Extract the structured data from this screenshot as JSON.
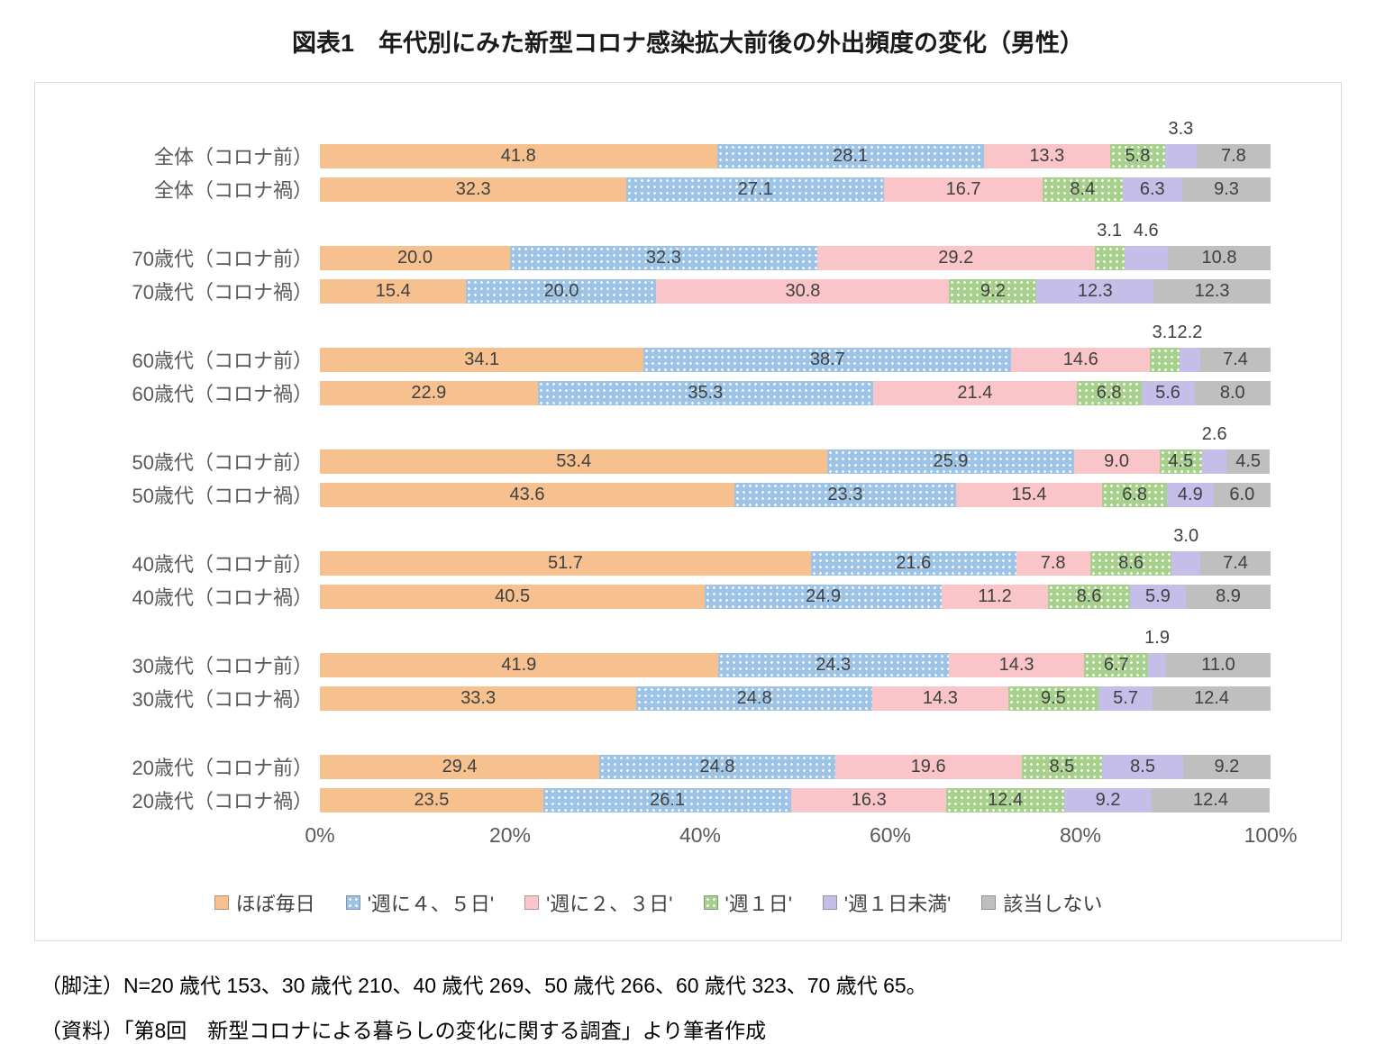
{
  "title": "図表1　年代別にみた新型コロナ感染拡大前後の外出頻度の変化（男性）",
  "chart_data": {
    "type": "bar",
    "subtype": "horizontal-stacked",
    "xlim": [
      0,
      100
    ],
    "x_ticks": [
      "0%",
      "20%",
      "40%",
      "60%",
      "80%",
      "100%"
    ],
    "legend_position": "bottom",
    "series_names": [
      "ほぼ毎日",
      "'週に４、５日'",
      "'週に２、３日'",
      "'週１日'",
      "'週１日未満'",
      "該当しない"
    ],
    "colors": [
      "#F6C18F",
      "#9DC3E6",
      "#F9C5C9",
      "#A8D08D",
      "#C5BEE9",
      "#BFBFBF"
    ],
    "dot_pattern_series": [
      1,
      3
    ],
    "groups": [
      {
        "rows": [
          {
            "label": "全体（コロナ前）",
            "values": [
              41.8,
              28.1,
              13.3,
              5.8,
              3.3,
              7.8
            ],
            "above_label_indices": [
              4
            ]
          },
          {
            "label": "全体（コロナ禍）",
            "values": [
              32.3,
              27.1,
              16.7,
              8.4,
              6.3,
              9.3
            ],
            "above_label_indices": []
          }
        ]
      },
      {
        "rows": [
          {
            "label": "70歳代（コロナ前）",
            "values": [
              20.0,
              32.3,
              29.2,
              3.1,
              4.6,
              10.8
            ],
            "above_label_indices": [
              3,
              4
            ]
          },
          {
            "label": "70歳代（コロナ禍）",
            "values": [
              15.4,
              20.0,
              30.8,
              9.2,
              12.3,
              12.3
            ],
            "above_label_indices": []
          }
        ]
      },
      {
        "rows": [
          {
            "label": "60歳代（コロナ前）",
            "values": [
              34.1,
              38.7,
              14.6,
              3.1,
              2.2,
              7.4
            ],
            "above_label_indices": [
              3,
              4
            ]
          },
          {
            "label": "60歳代（コロナ禍）",
            "values": [
              22.9,
              35.3,
              21.4,
              6.8,
              5.6,
              8.0
            ],
            "above_label_indices": []
          }
        ]
      },
      {
        "rows": [
          {
            "label": "50歳代（コロナ前）",
            "values": [
              53.4,
              25.9,
              9.0,
              4.5,
              2.6,
              4.5
            ],
            "above_label_indices": [
              4
            ]
          },
          {
            "label": "50歳代（コロナ禍）",
            "values": [
              43.6,
              23.3,
              15.4,
              6.8,
              4.9,
              6.0
            ],
            "above_label_indices": []
          }
        ]
      },
      {
        "rows": [
          {
            "label": "40歳代（コロナ前）",
            "values": [
              51.7,
              21.6,
              7.8,
              8.6,
              3.0,
              7.4
            ],
            "above_label_indices": [
              4
            ]
          },
          {
            "label": "40歳代（コロナ禍）",
            "values": [
              40.5,
              24.9,
              11.2,
              8.6,
              5.9,
              8.9
            ],
            "above_label_indices": []
          }
        ]
      },
      {
        "rows": [
          {
            "label": "30歳代（コロナ前）",
            "values": [
              41.9,
              24.3,
              14.3,
              6.7,
              1.9,
              11.0
            ],
            "above_label_indices": [
              4
            ]
          },
          {
            "label": "30歳代（コロナ禍）",
            "values": [
              33.3,
              24.8,
              14.3,
              9.5,
              5.7,
              12.4
            ],
            "above_label_indices": []
          }
        ]
      },
      {
        "rows": [
          {
            "label": "20歳代（コロナ前）",
            "values": [
              29.4,
              24.8,
              19.6,
              8.5,
              8.5,
              9.2
            ],
            "above_label_indices": []
          },
          {
            "label": "20歳代（コロナ禍）",
            "values": [
              23.5,
              26.1,
              16.3,
              12.4,
              9.2,
              12.4
            ],
            "above_label_indices": []
          }
        ]
      }
    ]
  },
  "footnotes": {
    "note": "（脚注）N=20 歳代 153、30 歳代 210、40 歳代 269、50 歳代 266、60 歳代 323、70 歳代 65。",
    "source": "（資料）「第8回　新型コロナによる暮らしの変化に関する調査」より筆者作成"
  }
}
